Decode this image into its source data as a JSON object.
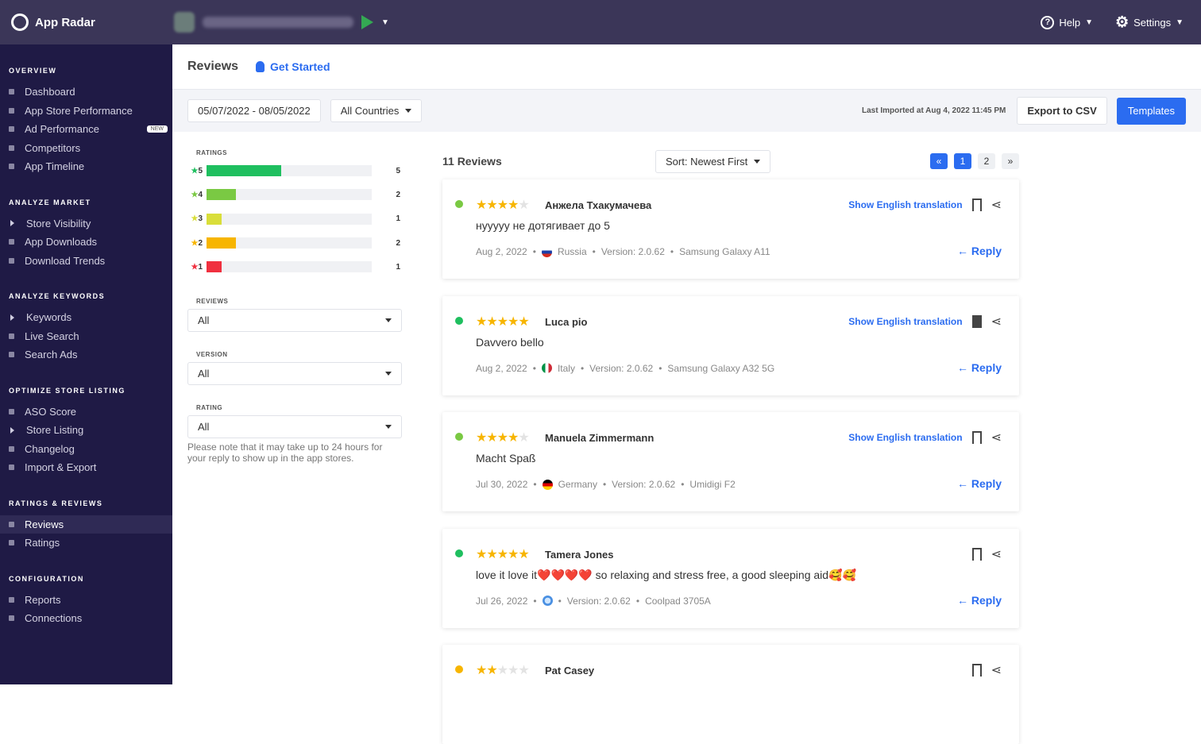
{
  "topbar": {
    "brand": "App Radar",
    "help": "Help",
    "settings": "Settings"
  },
  "sidebar": [
    {
      "title": "OVERVIEW",
      "items": [
        {
          "label": "Dashboard",
          "icon": "bullet"
        },
        {
          "label": "App Store Performance",
          "icon": "bullet"
        },
        {
          "label": "Ad Performance",
          "icon": "bullet",
          "badge": "NEW"
        },
        {
          "label": "Competitors",
          "icon": "bullet"
        },
        {
          "label": "App Timeline",
          "icon": "bullet"
        }
      ]
    },
    {
      "title": "ANALYZE MARKET",
      "items": [
        {
          "label": "Store Visibility",
          "icon": "arrow"
        },
        {
          "label": "App Downloads",
          "icon": "bullet"
        },
        {
          "label": "Download Trends",
          "icon": "bullet"
        }
      ]
    },
    {
      "title": "ANALYZE KEYWORDS",
      "items": [
        {
          "label": "Keywords",
          "icon": "arrow"
        },
        {
          "label": "Live Search",
          "icon": "bullet"
        },
        {
          "label": "Search Ads",
          "icon": "bullet"
        }
      ]
    },
    {
      "title": "OPTIMIZE STORE LISTING",
      "items": [
        {
          "label": "ASO Score",
          "icon": "bullet"
        },
        {
          "label": "Store Listing",
          "icon": "arrow"
        },
        {
          "label": "Changelog",
          "icon": "bullet"
        },
        {
          "label": "Import & Export",
          "icon": "bullet"
        }
      ]
    },
    {
      "title": "RATINGS & REVIEWS",
      "items": [
        {
          "label": "Reviews",
          "icon": "bullet",
          "active": true
        },
        {
          "label": "Ratings",
          "icon": "bullet"
        }
      ]
    },
    {
      "title": "CONFIGURATION",
      "items": [
        {
          "label": "Reports",
          "icon": "bullet"
        },
        {
          "label": "Connections",
          "icon": "bullet"
        }
      ]
    }
  ],
  "header": {
    "title": "Reviews",
    "get_started": "Get Started"
  },
  "toolbar": {
    "date_range": "05/07/2022 - 08/05/2022",
    "countries": "All Countries",
    "last_imported": "Last Imported at Aug 4, 2022 11:45 PM",
    "export": "Export to CSV",
    "templates": "Templates"
  },
  "filters": {
    "ratings_label": "RATINGS",
    "ratings": [
      {
        "stars": "5",
        "count": 5,
        "color": "#1fbf5f",
        "fill": 0.45
      },
      {
        "stars": "4",
        "count": 2,
        "color": "#7ac943",
        "fill": 0.18
      },
      {
        "stars": "3",
        "count": 1,
        "color": "#d9de3a",
        "fill": 0.09
      },
      {
        "stars": "2",
        "count": 2,
        "color": "#f7b500",
        "fill": 0.18
      },
      {
        "stars": "1",
        "count": 1,
        "color": "#f0303f",
        "fill": 0.09
      }
    ],
    "star_colors": {
      "5": "#1fbf5f",
      "4": "#7ac943",
      "3": "#d9de3a",
      "2": "#f7b500",
      "1": "#f0303f"
    },
    "reviews_label": "REVIEWS",
    "reviews_value": "All",
    "version_label": "VERSION",
    "version_value": "All",
    "rating_label": "RATING",
    "rating_value": "All",
    "note": "Please note that it may take up to 24 hours for your reply to show up in the app stores."
  },
  "list": {
    "count": "11 Reviews",
    "sort": "Sort: Newest First",
    "pages": [
      "«",
      "1",
      "2",
      "»"
    ],
    "current_page": "1"
  },
  "reviews": [
    {
      "rating": 4,
      "author": "Анжела Тхакумачева",
      "text": "нууууу не дотягивает до 5",
      "date": "Aug 2, 2022",
      "country": "Russia",
      "flag": "russia",
      "version": "Version: 2.0.62",
      "device": "Samsung Galaxy A11",
      "translate": "Show English translation",
      "bookmarked": false,
      "reply": "Reply",
      "dot": "#7ac943"
    },
    {
      "rating": 5,
      "author": "Luca pio",
      "text": "Davvero bello",
      "date": "Aug 2, 2022",
      "country": "Italy",
      "flag": "italy",
      "version": "Version: 2.0.62",
      "device": "Samsung Galaxy A32 5G",
      "translate": "Show English translation",
      "bookmarked": true,
      "reply": "Reply",
      "dot": "#1fbf5f"
    },
    {
      "rating": 4,
      "author": "Manuela Zimmermann",
      "text": "Macht Spaß",
      "date": "Jul 30, 2022",
      "country": "Germany",
      "flag": "germany",
      "version": "Version: 2.0.62",
      "device": "Umidigi F2",
      "translate": "Show English translation",
      "bookmarked": false,
      "reply": "Reply",
      "dot": "#7ac943"
    },
    {
      "rating": 5,
      "author": "Tamera Jones",
      "text": "love it love it❤️❤️❤️❤️ so relaxing and stress free, a good sleeping aid🥰🥰",
      "date": "Jul 26, 2022",
      "country": "",
      "flag": "globe",
      "version": "Version: 2.0.62",
      "device": "Coolpad 3705A",
      "translate": "",
      "bookmarked": false,
      "reply": "Reply",
      "dot": "#1fbf5f"
    },
    {
      "rating": 2,
      "author": "Pat Casey",
      "text": "",
      "date": "",
      "country": "",
      "flag": "",
      "version": "",
      "device": "",
      "translate": "",
      "bookmarked": false,
      "reply": "",
      "dot": "#f7b500"
    }
  ]
}
